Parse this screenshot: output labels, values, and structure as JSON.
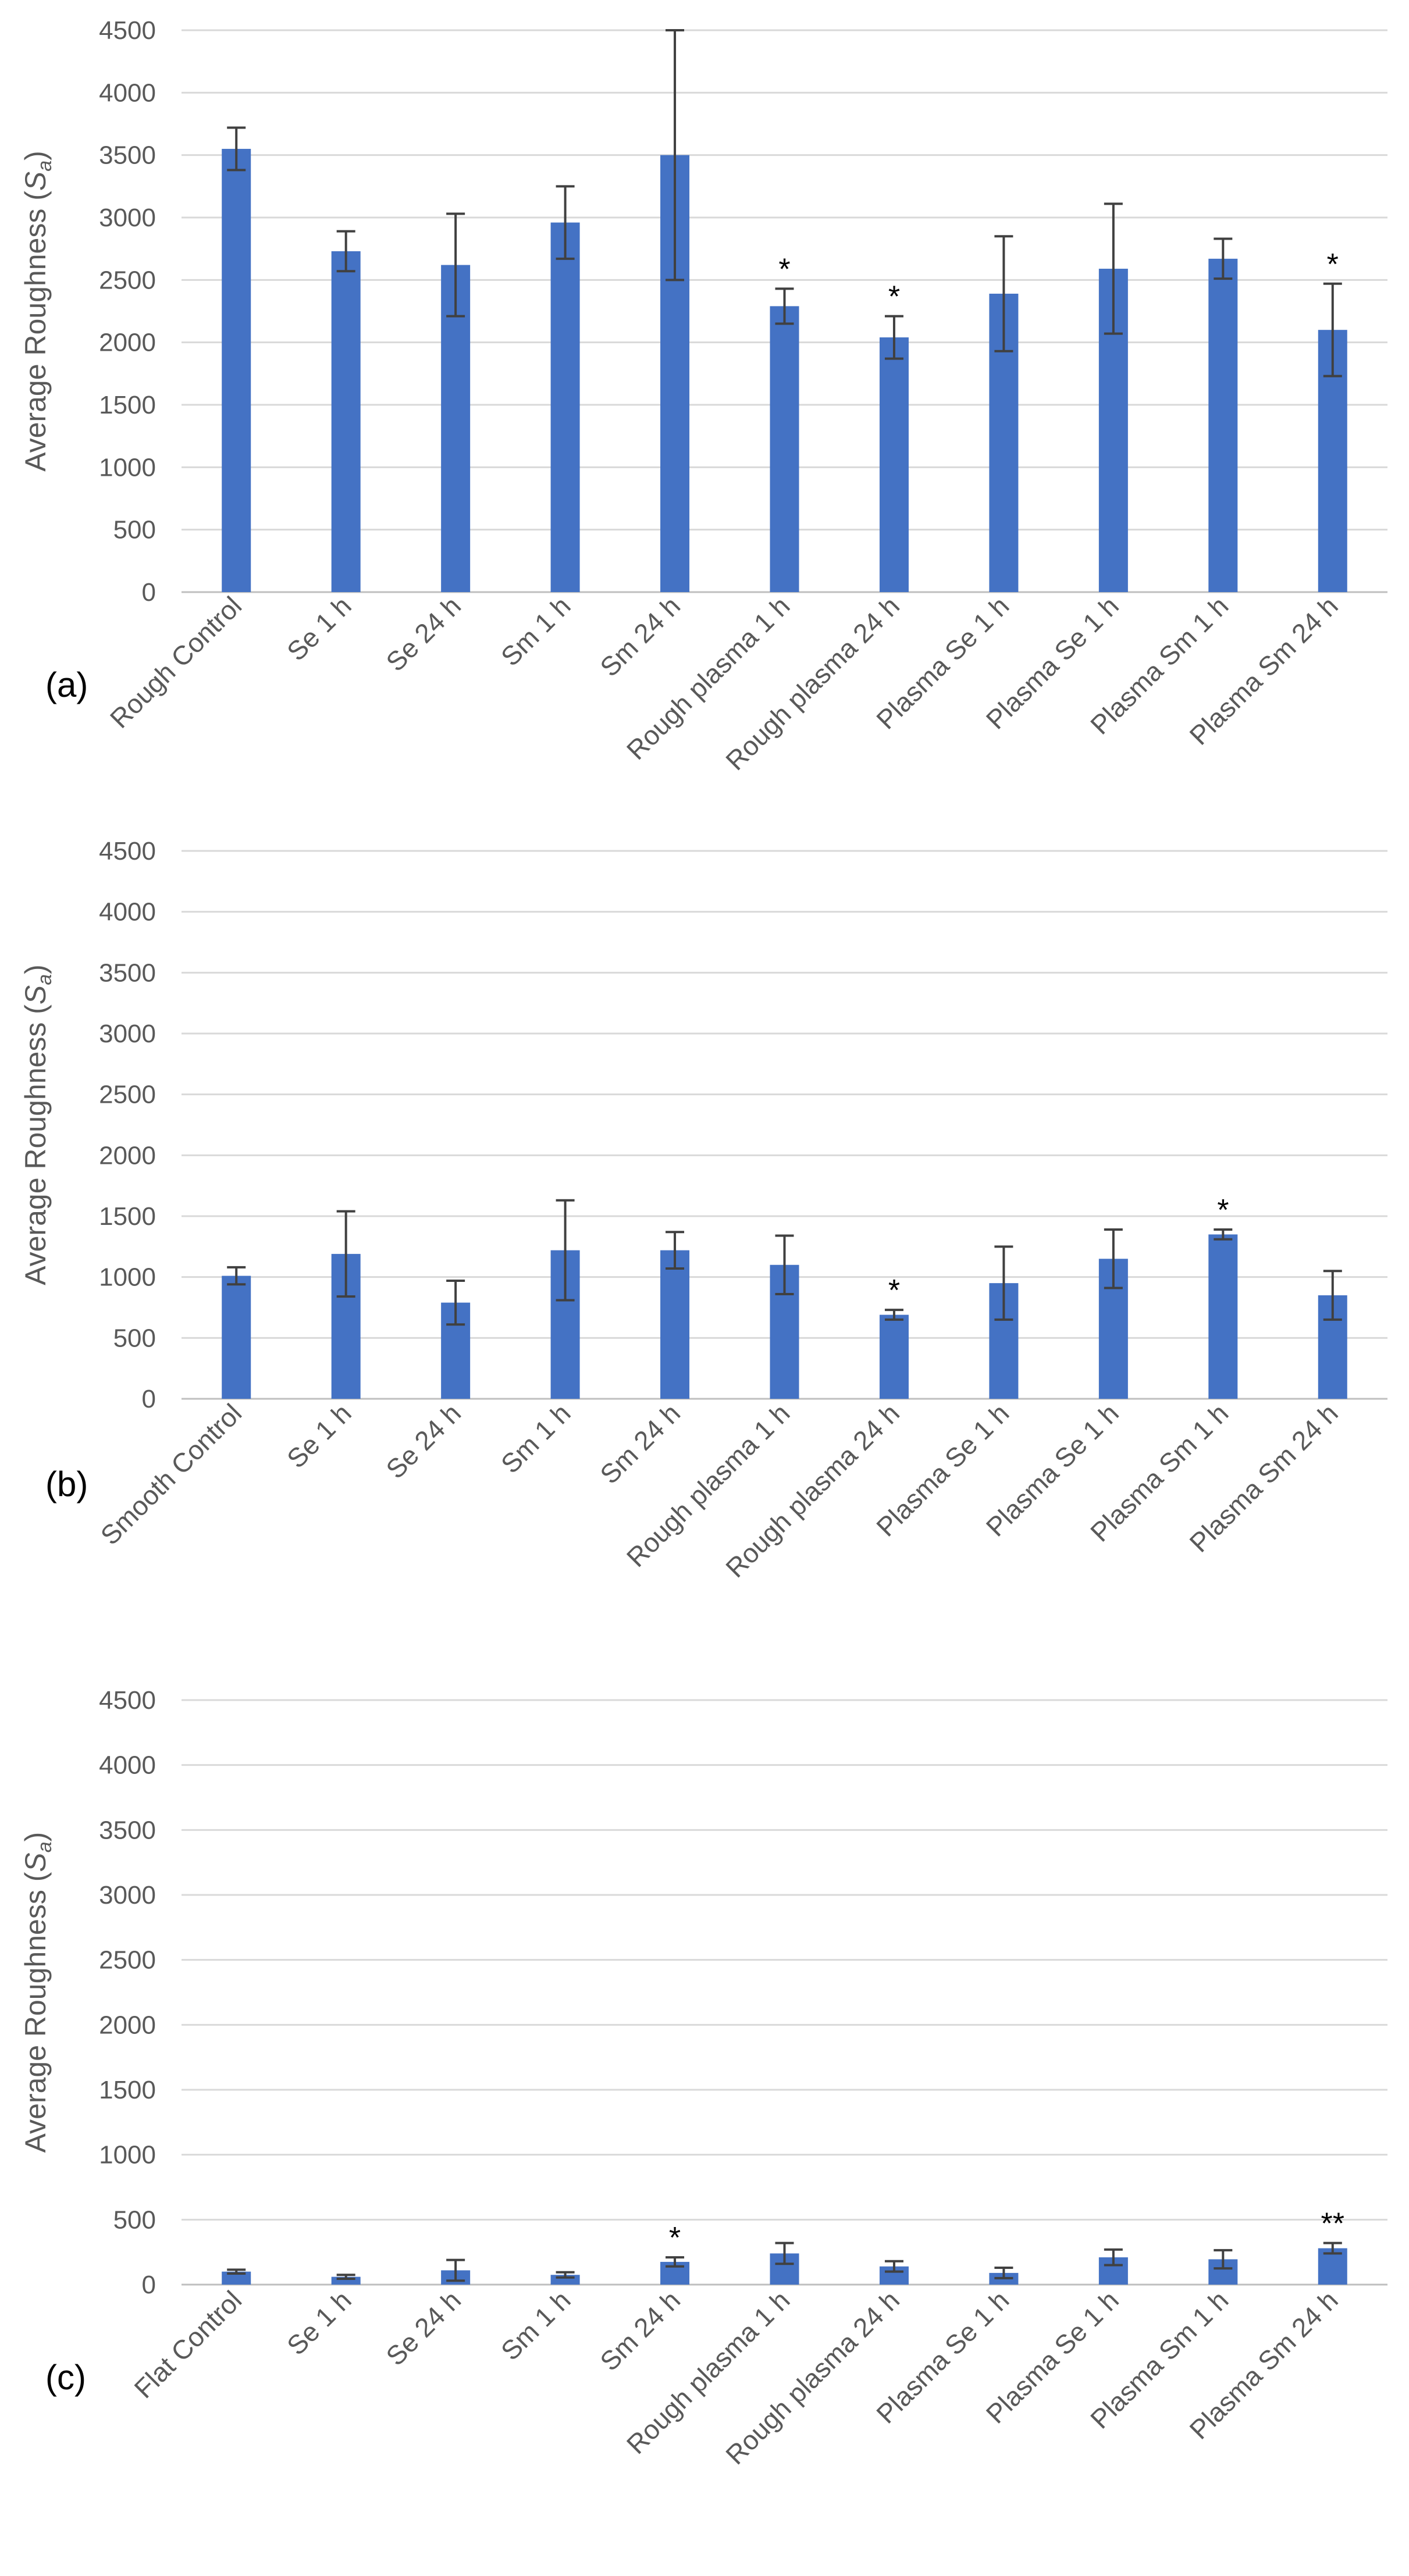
{
  "chart_data": [
    {
      "panel": "(a)",
      "type": "bar",
      "ylabel_main": "Average Roughness (",
      "ylabel_sym": "S",
      "ylabel_sub": "a",
      "ylabel_close": ")",
      "ylim": [
        0,
        4500
      ],
      "yticks": [
        "0",
        "500",
        "1000",
        "1500",
        "2000",
        "2500",
        "3000",
        "3500",
        "4000",
        "4500"
      ],
      "grid": true,
      "categories": [
        "Rough Control",
        "Se 1 h",
        "Se 24 h",
        "Sm 1 h",
        "Sm 24 h",
        "Rough plasma 1 h",
        "Rough plasma 24 h",
        "Plasma Se 1 h",
        "Plasma Se 1 h",
        "Plasma Sm 1 h",
        "Plasma Sm 24 h"
      ],
      "values": [
        3550,
        2730,
        2620,
        2960,
        3500,
        2290,
        2040,
        2390,
        2590,
        2670,
        2100
      ],
      "errors": [
        170,
        160,
        410,
        290,
        1000,
        140,
        170,
        460,
        520,
        160,
        370
      ],
      "significance": [
        "",
        "",
        "",
        "",
        "",
        "*",
        "*",
        "",
        "",
        "",
        "*"
      ]
    },
    {
      "panel": "(b)",
      "type": "bar",
      "ylabel_main": "Average Roughness (",
      "ylabel_sym": "S",
      "ylabel_sub": "a",
      "ylabel_close": ")",
      "ylim": [
        0,
        4500
      ],
      "yticks": [
        "0",
        "500",
        "1000",
        "1500",
        "2000",
        "2500",
        "3000",
        "3500",
        "4000",
        "4500"
      ],
      "grid": true,
      "categories": [
        "Smooth Control",
        "Se 1 h",
        "Se 24 h",
        "Sm 1 h",
        "Sm 24 h",
        "Rough plasma 1 h",
        "Rough plasma 24 h",
        "Plasma Se 1 h",
        "Plasma Se 1 h",
        "Plasma Sm 1 h",
        "Plasma Sm 24 h"
      ],
      "values": [
        1010,
        1190,
        790,
        1220,
        1220,
        1100,
        690,
        950,
        1150,
        1350,
        850
      ],
      "errors": [
        70,
        350,
        180,
        410,
        150,
        240,
        40,
        300,
        240,
        40,
        200
      ],
      "significance": [
        "",
        "",
        "",
        "",
        "",
        "",
        "*",
        "",
        "",
        "*",
        ""
      ]
    },
    {
      "panel": "(c)",
      "type": "bar",
      "ylabel_main": "Average Roughness (",
      "ylabel_sym": "S",
      "ylabel_sub": "a",
      "ylabel_close": ")",
      "ylim": [
        0,
        4500
      ],
      "yticks": [
        "0",
        "500",
        "1000",
        "1500",
        "2000",
        "2500",
        "3000",
        "3500",
        "4000",
        "4500"
      ],
      "grid": true,
      "categories": [
        "Flat Control",
        "Se 1 h",
        "Se 24 h",
        "Sm 1 h",
        "Sm 24 h",
        "Rough plasma 1 h",
        "Rough plasma 24 h",
        "Plasma Se 1 h",
        "Plasma Se 1 h",
        "Plasma Sm 1 h",
        "Plasma Sm 24 h"
      ],
      "values": [
        100,
        60,
        110,
        75,
        175,
        240,
        140,
        90,
        210,
        195,
        280
      ],
      "errors": [
        15,
        15,
        80,
        20,
        35,
        80,
        40,
        40,
        60,
        70,
        40
      ],
      "significance": [
        "",
        "",
        "",
        "",
        "*",
        "",
        "",
        "",
        "",
        "",
        "**"
      ]
    }
  ],
  "colors": {
    "bar": "#4472C4",
    "error_bar": "#404040",
    "grid": "#D9D9D9",
    "axis": "#BFBFBF",
    "tick_text": "#595959",
    "label_text": "#595959",
    "annotation_text": "#000000"
  }
}
